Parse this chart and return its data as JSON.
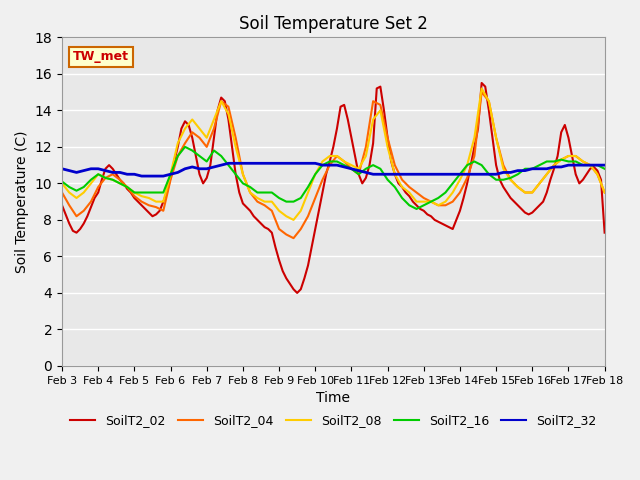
{
  "title": "Soil Temperature Set 2",
  "xlabel": "Time",
  "ylabel": "Soil Temperature (C)",
  "annotation": "TW_met",
  "ylim": [
    0,
    18
  ],
  "xlim_days": [
    3,
    18
  ],
  "yticks": [
    0,
    2,
    4,
    6,
    8,
    10,
    12,
    14,
    16,
    18
  ],
  "xtick_labels": [
    "Feb 3",
    "Feb 4",
    "Feb 5",
    "Feb 6",
    "Feb 7",
    "Feb 8",
    "Feb 9",
    "Feb 10",
    "Feb 11",
    "Feb 12",
    "Feb 13",
    "Feb 14",
    "Feb 15",
    "Feb 16",
    "Feb 17",
    "Feb 18"
  ],
  "bg_color": "#e8e8e8",
  "grid_color": "#ffffff",
  "series": {
    "SoilT2_02": {
      "color": "#cc0000",
      "lw": 1.5,
      "x": [
        3.0,
        3.1,
        3.2,
        3.3,
        3.4,
        3.5,
        3.6,
        3.7,
        3.8,
        3.9,
        4.0,
        4.1,
        4.2,
        4.3,
        4.4,
        4.5,
        4.6,
        4.7,
        4.8,
        4.9,
        5.0,
        5.1,
        5.2,
        5.3,
        5.4,
        5.5,
        5.6,
        5.7,
        5.8,
        5.9,
        6.0,
        6.1,
        6.2,
        6.3,
        6.4,
        6.5,
        6.6,
        6.7,
        6.8,
        6.9,
        7.0,
        7.1,
        7.2,
        7.3,
        7.4,
        7.5,
        7.6,
        7.7,
        7.8,
        7.9,
        8.0,
        8.1,
        8.2,
        8.3,
        8.4,
        8.5,
        8.6,
        8.7,
        8.8,
        8.9,
        9.0,
        9.1,
        9.2,
        9.3,
        9.4,
        9.5,
        9.6,
        9.7,
        9.8,
        9.9,
        10.0,
        10.1,
        10.2,
        10.3,
        10.4,
        10.5,
        10.6,
        10.7,
        10.8,
        10.9,
        11.0,
        11.1,
        11.2,
        11.3,
        11.4,
        11.5,
        11.6,
        11.7,
        11.8,
        11.9,
        12.0,
        12.1,
        12.2,
        12.3,
        12.4,
        12.5,
        12.6,
        12.7,
        12.8,
        12.9,
        13.0,
        13.1,
        13.2,
        13.3,
        13.4,
        13.5,
        13.6,
        13.7,
        13.8,
        13.9,
        14.0,
        14.1,
        14.2,
        14.3,
        14.4,
        14.5,
        14.6,
        14.7,
        14.8,
        14.9,
        15.0,
        15.1,
        15.2,
        15.3,
        15.4,
        15.5,
        15.6,
        15.7,
        15.8,
        15.9,
        16.0,
        16.1,
        16.2,
        16.3,
        16.4,
        16.5,
        16.6,
        16.7,
        16.8,
        16.9,
        17.0,
        17.1,
        17.2,
        17.3,
        17.4,
        17.5,
        17.6,
        17.7,
        17.8,
        17.9,
        18.0
      ],
      "y": [
        8.8,
        8.3,
        7.8,
        7.4,
        7.3,
        7.5,
        7.8,
        8.2,
        8.7,
        9.2,
        9.5,
        10.2,
        10.8,
        11.0,
        10.8,
        10.5,
        10.2,
        10.0,
        9.7,
        9.5,
        9.2,
        9.0,
        8.8,
        8.6,
        8.4,
        8.2,
        8.3,
        8.5,
        9.0,
        9.5,
        10.3,
        11.2,
        12.0,
        13.0,
        13.4,
        13.2,
        12.5,
        11.5,
        10.5,
        10.0,
        10.3,
        11.0,
        12.5,
        14.0,
        14.7,
        14.5,
        13.5,
        12.0,
        10.5,
        9.5,
        8.9,
        8.7,
        8.5,
        8.2,
        8.0,
        7.8,
        7.6,
        7.5,
        7.3,
        6.5,
        5.8,
        5.2,
        4.8,
        4.5,
        4.2,
        4.0,
        4.2,
        4.8,
        5.5,
        6.5,
        7.5,
        8.5,
        9.5,
        10.5,
        11.2,
        12.0,
        13.0,
        14.2,
        14.3,
        13.5,
        12.5,
        11.5,
        10.5,
        10.0,
        10.3,
        11.0,
        12.2,
        15.2,
        15.3,
        14.0,
        12.5,
        11.2,
        10.5,
        10.0,
        9.8,
        9.5,
        9.3,
        9.0,
        8.8,
        8.6,
        8.5,
        8.3,
        8.2,
        8.0,
        7.9,
        7.8,
        7.7,
        7.6,
        7.5,
        8.0,
        8.5,
        9.2,
        10.0,
        11.0,
        12.0,
        13.0,
        15.5,
        15.3,
        14.0,
        12.5,
        11.0,
        10.2,
        9.8,
        9.5,
        9.2,
        9.0,
        8.8,
        8.6,
        8.4,
        8.3,
        8.4,
        8.6,
        8.8,
        9.0,
        9.5,
        10.2,
        10.8,
        11.5,
        12.8,
        13.2,
        12.5,
        11.5,
        10.5,
        10.0,
        10.2,
        10.5,
        10.8,
        10.9,
        10.7,
        10.2,
        7.3
      ]
    },
    "SoilT2_04": {
      "color": "#ff6600",
      "lw": 1.5,
      "x": [
        3.0,
        3.2,
        3.4,
        3.6,
        3.8,
        4.0,
        4.2,
        4.4,
        4.6,
        4.8,
        5.0,
        5.2,
        5.4,
        5.6,
        5.8,
        6.0,
        6.2,
        6.4,
        6.6,
        6.8,
        7.0,
        7.2,
        7.4,
        7.6,
        7.8,
        8.0,
        8.2,
        8.4,
        8.6,
        8.8,
        9.0,
        9.2,
        9.4,
        9.6,
        9.8,
        10.0,
        10.2,
        10.4,
        10.6,
        10.8,
        11.0,
        11.2,
        11.4,
        11.6,
        11.8,
        12.0,
        12.2,
        12.4,
        12.6,
        12.8,
        13.0,
        13.2,
        13.4,
        13.6,
        13.8,
        14.0,
        14.2,
        14.4,
        14.6,
        14.8,
        15.0,
        15.2,
        15.4,
        15.6,
        15.8,
        16.0,
        16.2,
        16.4,
        16.6,
        16.8,
        17.0,
        17.2,
        17.4,
        17.6,
        17.8,
        18.0
      ],
      "y": [
        9.5,
        8.8,
        8.2,
        8.5,
        9.0,
        9.8,
        10.3,
        10.5,
        10.2,
        9.8,
        9.3,
        9.0,
        8.8,
        8.7,
        8.5,
        10.2,
        11.5,
        12.2,
        12.8,
        12.5,
        12.0,
        13.0,
        14.5,
        14.2,
        12.5,
        10.5,
        9.5,
        9.0,
        8.8,
        8.5,
        7.5,
        7.2,
        7.0,
        7.5,
        8.2,
        9.2,
        10.2,
        11.0,
        11.5,
        11.2,
        10.8,
        10.5,
        12.0,
        14.5,
        14.3,
        12.5,
        11.0,
        10.2,
        9.8,
        9.5,
        9.2,
        9.0,
        8.8,
        8.8,
        9.0,
        9.5,
        10.3,
        11.5,
        15.0,
        14.5,
        12.5,
        11.0,
        10.2,
        9.8,
        9.5,
        9.5,
        10.0,
        10.5,
        11.0,
        11.3,
        11.5,
        11.5,
        11.2,
        11.0,
        10.5,
        9.5
      ]
    },
    "SoilT2_08": {
      "color": "#ffcc00",
      "lw": 1.5,
      "x": [
        3.0,
        3.2,
        3.4,
        3.6,
        3.8,
        4.0,
        4.2,
        4.4,
        4.6,
        4.8,
        5.0,
        5.2,
        5.4,
        5.6,
        5.8,
        6.0,
        6.2,
        6.4,
        6.6,
        6.8,
        7.0,
        7.2,
        7.4,
        7.6,
        7.8,
        8.0,
        8.2,
        8.4,
        8.6,
        8.8,
        9.0,
        9.2,
        9.4,
        9.6,
        9.8,
        10.0,
        10.2,
        10.4,
        10.6,
        10.8,
        11.0,
        11.2,
        11.4,
        11.6,
        11.8,
        12.0,
        12.2,
        12.4,
        12.6,
        12.8,
        13.0,
        13.2,
        13.4,
        13.6,
        13.8,
        14.0,
        14.2,
        14.4,
        14.6,
        14.8,
        15.0,
        15.2,
        15.4,
        15.6,
        15.8,
        16.0,
        16.2,
        16.4,
        16.6,
        16.8,
        17.0,
        17.2,
        17.4,
        17.6,
        17.8,
        18.0
      ],
      "y": [
        10.0,
        9.5,
        9.2,
        9.5,
        10.0,
        10.5,
        10.3,
        10.2,
        10.0,
        9.8,
        9.5,
        9.3,
        9.2,
        9.0,
        9.0,
        10.5,
        12.2,
        13.0,
        13.5,
        13.0,
        12.5,
        13.5,
        14.5,
        13.8,
        12.0,
        10.5,
        9.5,
        9.2,
        9.0,
        9.0,
        8.5,
        8.2,
        8.0,
        8.5,
        9.5,
        10.5,
        11.2,
        11.5,
        11.5,
        11.2,
        11.0,
        10.8,
        11.5,
        13.5,
        14.0,
        12.0,
        10.5,
        9.8,
        9.5,
        9.0,
        9.0,
        9.0,
        8.8,
        9.0,
        9.5,
        10.2,
        11.0,
        12.5,
        15.2,
        14.5,
        12.5,
        10.8,
        10.2,
        9.8,
        9.5,
        9.5,
        10.0,
        10.5,
        11.0,
        11.3,
        11.5,
        11.5,
        11.2,
        11.0,
        10.5,
        9.5
      ]
    },
    "SoilT2_16": {
      "color": "#00cc00",
      "lw": 1.5,
      "x": [
        3.0,
        3.2,
        3.4,
        3.6,
        3.8,
        4.0,
        4.2,
        4.4,
        4.6,
        4.8,
        5.0,
        5.2,
        5.4,
        5.6,
        5.8,
        6.0,
        6.2,
        6.4,
        6.6,
        6.8,
        7.0,
        7.2,
        7.4,
        7.6,
        7.8,
        8.0,
        8.2,
        8.4,
        8.6,
        8.8,
        9.0,
        9.2,
        9.4,
        9.6,
        9.8,
        10.0,
        10.2,
        10.4,
        10.6,
        10.8,
        11.0,
        11.2,
        11.4,
        11.6,
        11.8,
        12.0,
        12.2,
        12.4,
        12.6,
        12.8,
        13.0,
        13.2,
        13.4,
        13.6,
        13.8,
        14.0,
        14.2,
        14.4,
        14.6,
        14.8,
        15.0,
        15.2,
        15.4,
        15.6,
        15.8,
        16.0,
        16.2,
        16.4,
        16.6,
        16.8,
        17.0,
        17.2,
        17.4,
        17.6,
        17.8,
        18.0
      ],
      "y": [
        10.1,
        9.8,
        9.6,
        9.8,
        10.2,
        10.5,
        10.3,
        10.2,
        10.0,
        9.8,
        9.5,
        9.5,
        9.5,
        9.5,
        9.5,
        10.5,
        11.5,
        12.0,
        11.8,
        11.5,
        11.2,
        11.8,
        11.5,
        11.0,
        10.5,
        10.0,
        9.8,
        9.5,
        9.5,
        9.5,
        9.2,
        9.0,
        9.0,
        9.2,
        9.8,
        10.5,
        11.0,
        11.2,
        11.2,
        11.0,
        10.8,
        10.5,
        10.8,
        11.0,
        10.8,
        10.2,
        9.8,
        9.2,
        8.8,
        8.6,
        8.8,
        9.0,
        9.2,
        9.5,
        10.0,
        10.5,
        11.0,
        11.2,
        11.0,
        10.5,
        10.2,
        10.2,
        10.3,
        10.5,
        10.8,
        10.8,
        11.0,
        11.2,
        11.2,
        11.3,
        11.2,
        11.2,
        11.0,
        11.0,
        11.0,
        10.8
      ]
    },
    "SoilT2_32": {
      "color": "#0000cc",
      "lw": 2.0,
      "x": [
        3.0,
        3.2,
        3.4,
        3.6,
        3.8,
        4.0,
        4.2,
        4.4,
        4.6,
        4.8,
        5.0,
        5.2,
        5.4,
        5.6,
        5.8,
        6.0,
        6.2,
        6.4,
        6.6,
        6.8,
        7.0,
        7.2,
        7.4,
        7.6,
        7.8,
        8.0,
        8.2,
        8.4,
        8.6,
        8.8,
        9.0,
        9.2,
        9.4,
        9.6,
        9.8,
        10.0,
        10.2,
        10.4,
        10.6,
        10.8,
        11.0,
        11.2,
        11.4,
        11.6,
        11.8,
        12.0,
        12.2,
        12.4,
        12.6,
        12.8,
        13.0,
        13.2,
        13.4,
        13.6,
        13.8,
        14.0,
        14.2,
        14.4,
        14.6,
        14.8,
        15.0,
        15.2,
        15.4,
        15.6,
        15.8,
        16.0,
        16.2,
        16.4,
        16.6,
        16.8,
        17.0,
        17.2,
        17.4,
        17.6,
        17.8,
        18.0
      ],
      "y": [
        10.8,
        10.7,
        10.6,
        10.7,
        10.8,
        10.8,
        10.7,
        10.6,
        10.6,
        10.5,
        10.5,
        10.4,
        10.4,
        10.4,
        10.4,
        10.5,
        10.6,
        10.8,
        10.9,
        10.8,
        10.8,
        10.9,
        11.0,
        11.1,
        11.1,
        11.1,
        11.1,
        11.1,
        11.1,
        11.1,
        11.1,
        11.1,
        11.1,
        11.1,
        11.1,
        11.1,
        11.0,
        11.0,
        11.0,
        10.9,
        10.8,
        10.7,
        10.6,
        10.5,
        10.5,
        10.5,
        10.5,
        10.5,
        10.5,
        10.5,
        10.5,
        10.5,
        10.5,
        10.5,
        10.5,
        10.5,
        10.5,
        10.5,
        10.5,
        10.5,
        10.5,
        10.6,
        10.6,
        10.7,
        10.7,
        10.8,
        10.8,
        10.8,
        10.9,
        10.9,
        11.0,
        11.0,
        11.0,
        11.0,
        11.0,
        11.0
      ]
    }
  },
  "legend_entries": [
    "SoilT2_02",
    "SoilT2_04",
    "SoilT2_08",
    "SoilT2_16",
    "SoilT2_32"
  ],
  "legend_colors": [
    "#cc0000",
    "#ff6600",
    "#ffcc00",
    "#00cc00",
    "#0000cc"
  ]
}
